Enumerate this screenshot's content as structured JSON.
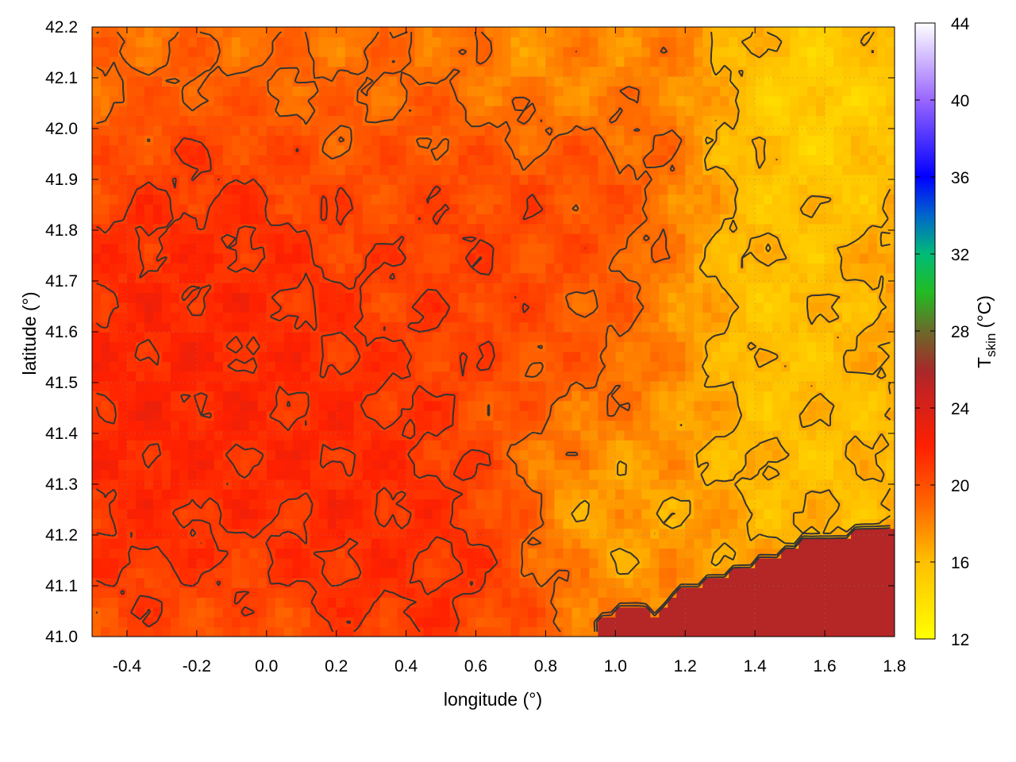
{
  "chart_data": {
    "type": "heatmap",
    "title": "",
    "xlabel": "longitude (°)",
    "ylabel": "latitude (°)",
    "colorbar": {
      "label_main": "T",
      "label_sub": "skin",
      "label_units": " (°C)",
      "range": [
        12,
        44
      ],
      "ticks": [
        12,
        16,
        20,
        24,
        28,
        32,
        36,
        40,
        44
      ],
      "tick_labels": [
        "12",
        "16",
        "20",
        "24",
        "28",
        "32",
        "36",
        "40",
        "44"
      ],
      "stops": [
        {
          "value": 12,
          "color": "#ffff00"
        },
        {
          "value": 16,
          "color": "#ffbf00"
        },
        {
          "value": 19,
          "color": "#ff6600"
        },
        {
          "value": 22,
          "color": "#ff2000"
        },
        {
          "value": 25,
          "color": "#c42222"
        },
        {
          "value": 26,
          "color": "#a52a2a"
        },
        {
          "value": 28,
          "color": "#6a6a2a"
        },
        {
          "value": 30,
          "color": "#22bb22"
        },
        {
          "value": 32,
          "color": "#00bb77"
        },
        {
          "value": 34,
          "color": "#0066cc"
        },
        {
          "value": 36,
          "color": "#0000ff"
        },
        {
          "value": 40,
          "color": "#9966ff"
        },
        {
          "value": 44,
          "color": "#ffffff"
        }
      ]
    },
    "x_range": [
      -0.5,
      1.8
    ],
    "y_range": [
      41.0,
      42.2
    ],
    "x_ticks": [
      -0.4,
      -0.2,
      0.0,
      0.2,
      0.4,
      0.6,
      0.8,
      1.0,
      1.2,
      1.4,
      1.6,
      1.8
    ],
    "x_tick_labels": [
      "-0.4",
      "-0.2",
      "0.0",
      "0.2",
      "0.4",
      "0.6",
      "0.8",
      "1.0",
      "1.2",
      "1.4",
      "1.6",
      "1.8"
    ],
    "y_ticks": [
      41.0,
      41.1,
      41.2,
      41.3,
      41.4,
      41.5,
      41.6,
      41.7,
      41.8,
      41.9,
      42.0,
      42.1,
      42.2
    ],
    "y_tick_labels": [
      "41.0",
      "41.1",
      "41.2",
      "41.3",
      "41.4",
      "41.5",
      "41.6",
      "41.7",
      "41.8",
      "41.9",
      "42.0",
      "42.1",
      "42.2"
    ],
    "grid": "dotted",
    "contours": "dark gray topography isolines",
    "sea_value": 25.5,
    "sea_coast": [
      [
        0.93,
        41.0
      ],
      [
        0.97,
        41.04
      ],
      [
        1.06,
        41.06
      ],
      [
        1.12,
        41.04
      ],
      [
        1.18,
        41.09
      ],
      [
        1.3,
        41.12
      ],
      [
        1.45,
        41.16
      ],
      [
        1.55,
        41.19
      ],
      [
        1.64,
        41.2
      ],
      [
        1.72,
        41.21
      ],
      [
        1.76,
        41.22
      ],
      [
        1.8,
        41.22
      ]
    ],
    "temperature_field": [
      {
        "lon": -0.35,
        "lat": 41.45,
        "t": 22.8,
        "sx": 0.3,
        "sy": 0.35
      },
      {
        "lon": -0.1,
        "lat": 41.6,
        "t": 22.2,
        "sx": 0.3,
        "sy": 0.3
      },
      {
        "lon": 0.2,
        "lat": 41.35,
        "t": 22.4,
        "sx": 0.25,
        "sy": 0.25
      },
      {
        "lon": 0.45,
        "lat": 41.15,
        "t": 22.0,
        "sx": 0.25,
        "sy": 0.2
      },
      {
        "lon": 0.55,
        "lat": 41.7,
        "t": 21.2,
        "sx": 0.3,
        "sy": 0.25
      },
      {
        "lon": 0.9,
        "lat": 41.85,
        "t": 20.6,
        "sx": 0.25,
        "sy": 0.2
      },
      {
        "lon": 1.0,
        "lat": 41.55,
        "t": 19.6,
        "sx": 0.25,
        "sy": 0.25
      },
      {
        "lon": 1.4,
        "lat": 41.6,
        "t": 14.8,
        "sx": 0.3,
        "sy": 0.3
      },
      {
        "lon": 1.65,
        "lat": 41.35,
        "t": 15.5,
        "sx": 0.25,
        "sy": 0.2
      },
      {
        "lon": 1.6,
        "lat": 42.05,
        "t": 14.0,
        "sx": 0.25,
        "sy": 0.2
      },
      {
        "lon": 1.0,
        "lat": 41.3,
        "t": 15.8,
        "sx": 0.2,
        "sy": 0.15
      },
      {
        "lon": 0.85,
        "lat": 42.1,
        "t": 17.0,
        "sx": 0.2,
        "sy": 0.15
      }
    ],
    "background_t": 18.5
  }
}
